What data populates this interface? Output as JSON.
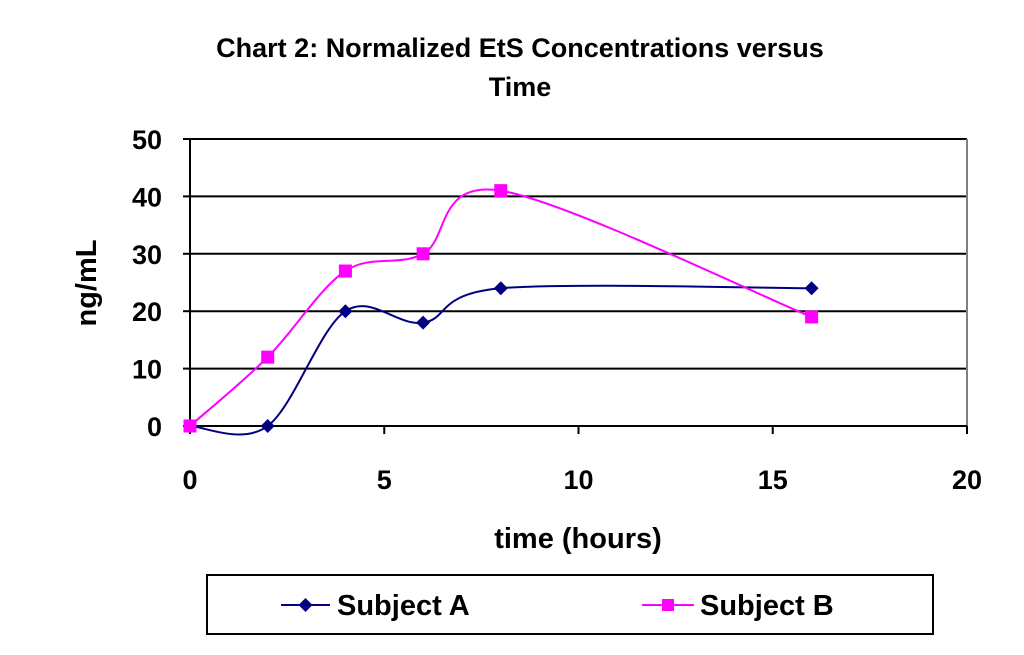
{
  "chart_data": {
    "type": "line",
    "title": [
      "Chart 2:  Normalized EtS Concentrations versus",
      "Time"
    ],
    "xlabel": "time (hours)",
    "ylabel": "ng/mL",
    "xlim": [
      0,
      20
    ],
    "ylim": [
      0,
      50
    ],
    "x_ticks": [
      "0",
      "5",
      "10",
      "15",
      "20"
    ],
    "y_ticks": [
      "0",
      "10",
      "20",
      "30",
      "40",
      "50"
    ],
    "grid": "horizontal",
    "legend_position": "bottom",
    "smooth": true,
    "series": [
      {
        "name": "Subject A",
        "color": "#000080",
        "marker": "diamond",
        "x": [
          0,
          2,
          4,
          6,
          8,
          16
        ],
        "values": [
          0,
          0,
          20,
          18,
          24,
          24
        ]
      },
      {
        "name": "Subject B",
        "color": "#ff00ff",
        "marker": "square",
        "x": [
          0,
          2,
          4,
          6,
          8,
          16
        ],
        "values": [
          0,
          12,
          27,
          30,
          41,
          19
        ]
      }
    ]
  }
}
